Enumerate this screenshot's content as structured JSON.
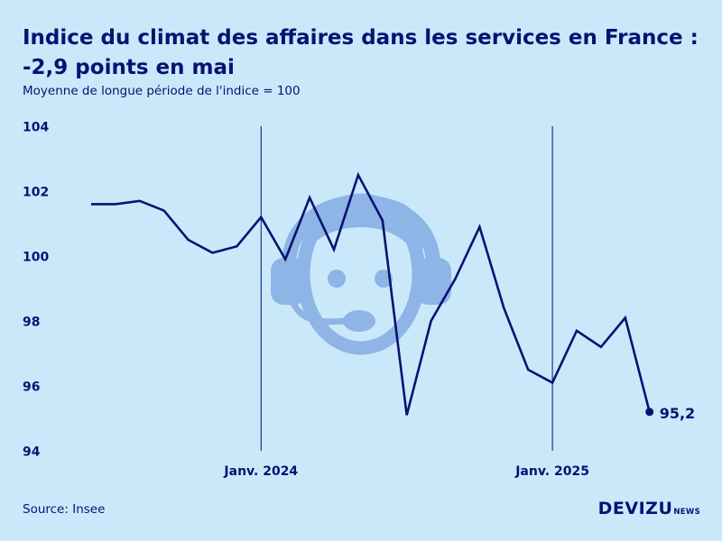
{
  "header": {
    "title": "Indice du climat des affaires dans les services en France : -2,9 points en mai",
    "subtitle": "Moyenne de longue période de l'indice = 100"
  },
  "footer": {
    "source": "Source: Insee",
    "brand_main": "DEVIZU",
    "brand_sub": "NEWS"
  },
  "watermark_icon": "headset-person-icon",
  "colors": {
    "background": "#c9e9fb",
    "line": "#0a1172",
    "watermark": "#8fb4e6"
  },
  "chart_data": {
    "type": "line",
    "title": "Indice du climat des affaires dans les services en France : -2,9 points en mai",
    "subtitle": "Moyenne de longue période de l'indice = 100",
    "x": [
      "2023-06",
      "2023-07",
      "2023-08",
      "2023-09",
      "2023-10",
      "2023-11",
      "2023-12",
      "2024-01",
      "2024-02",
      "2024-03",
      "2024-04",
      "2024-05",
      "2024-06",
      "2024-07",
      "2024-08",
      "2024-09",
      "2024-10",
      "2024-11",
      "2024-12",
      "2025-01",
      "2025-02",
      "2025-03",
      "2025-04",
      "2025-05"
    ],
    "series": [
      {
        "values": [
          101.6,
          101.6,
          101.7,
          101.4,
          100.5,
          100.1,
          100.3,
          101.2,
          99.9,
          101.8,
          100.2,
          102.5,
          101.1,
          95.1,
          98.0,
          99.3,
          100.9,
          98.4,
          96.5,
          96.1,
          97.7,
          97.2,
          98.1,
          95.2
        ]
      }
    ],
    "ylim": [
      94,
      104
    ],
    "yticks": [
      94,
      96,
      98,
      100,
      102,
      104
    ],
    "xtick_labels": [
      {
        "x": "2024-01",
        "label": "Janv. 2024"
      },
      {
        "x": "2025-01",
        "label": "Janv. 2025"
      }
    ],
    "vertical_lines": [
      "2024-01",
      "2025-01"
    ],
    "last_point_label": "95,2",
    "grid": false,
    "xlabel": "",
    "ylabel": ""
  }
}
